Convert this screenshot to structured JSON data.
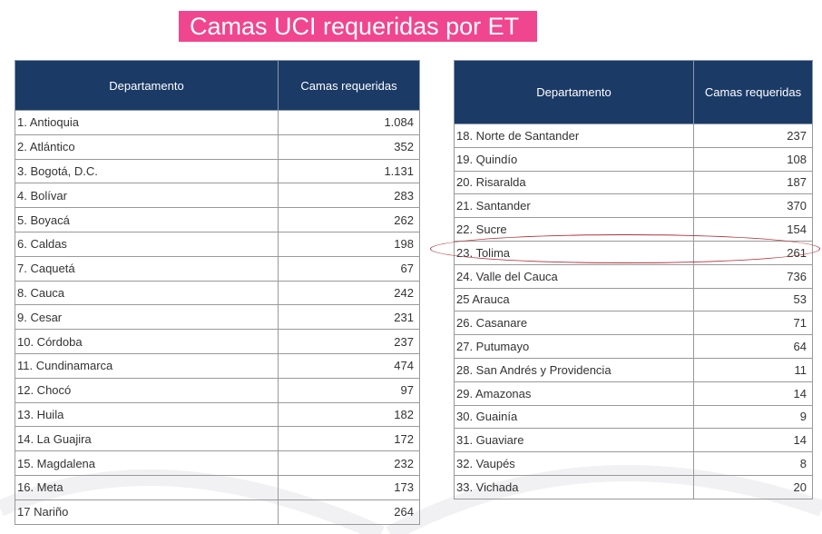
{
  "title": "Camas UCI requeridas por ET",
  "headers": {
    "departamento": "Departamento",
    "camas": "Camas requeridas"
  },
  "left_rows": [
    {
      "name": "1.  Antioquia",
      "value": "1.084"
    },
    {
      "name": "2.  Atlántico",
      "value": "352"
    },
    {
      "name": "3. Bogotá, D.C.",
      "value": "1.131"
    },
    {
      "name": "4. Bolívar",
      "value": "283"
    },
    {
      "name": "5. Boyacá",
      "value": "262"
    },
    {
      "name": "6. Caldas",
      "value": "198"
    },
    {
      "name": "7. Caquetá",
      "value": "67"
    },
    {
      "name": "8. Cauca",
      "value": "242"
    },
    {
      "name": " 9. Cesar",
      "value": "231"
    },
    {
      "name": "10. Córdoba",
      "value": "237"
    },
    {
      "name": "11. Cundinamarca",
      "value": "474"
    },
    {
      "name": "12. Chocó",
      "value": "97"
    },
    {
      "name": "13. Huila",
      "value": "182"
    },
    {
      "name": "14. La Guajira",
      "value": "172"
    },
    {
      "name": "15. Magdalena",
      "value": "232"
    },
    {
      "name": "16. Meta",
      "value": "173"
    },
    {
      "name": "17 Nariño",
      "value": "264"
    }
  ],
  "right_rows": [
    {
      "name": "18. Norte de Santander",
      "value": "237"
    },
    {
      "name": "19. Quindío",
      "value": "108"
    },
    {
      "name": "20. Risaralda",
      "value": "187"
    },
    {
      "name": "21. Santander",
      "value": "370"
    },
    {
      "name": "22. Sucre",
      "value": "154"
    },
    {
      "name": "23. Tolima",
      "value": "261",
      "highlighted": true
    },
    {
      "name": "24. Valle del Cauca",
      "value": "736"
    },
    {
      "name": "25 Arauca",
      "value": "53"
    },
    {
      "name": "26. Casanare",
      "value": "71"
    },
    {
      "name": "27. Putumayo",
      "value": "64"
    },
    {
      "name": "28. San Andrés y Providencia",
      "value": "11"
    },
    {
      "name": "29. Amazonas",
      "value": "14"
    },
    {
      "name": "30. Guainía",
      "value": "9"
    },
    {
      "name": "31. Guaviare",
      "value": "14"
    },
    {
      "name": "32. Vaupés",
      "value": "8"
    },
    {
      "name": "33. Vichada",
      "value": "20"
    }
  ],
  "colors": {
    "title_bg": "#f0468f",
    "header_bg": "#1b3a66",
    "highlight": "#b0303a"
  }
}
